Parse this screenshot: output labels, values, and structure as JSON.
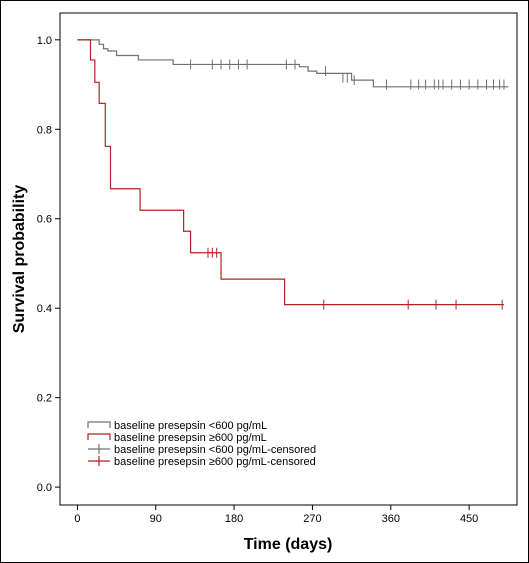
{
  "chart_data": {
    "type": "line",
    "subtype": "kaplan-meier",
    "title": "",
    "xlabel": "Time (days)",
    "ylabel": "Survival probability",
    "xlim": [
      -20,
      505
    ],
    "ylim": [
      -0.04,
      1.06
    ],
    "x_ticks": [
      0,
      90,
      180,
      270,
      360,
      450
    ],
    "y_ticks": [
      0.0,
      0.2,
      0.4,
      0.6,
      0.8,
      1.0
    ],
    "y_tick_labels": [
      "0.0",
      "0.2",
      "0.4",
      "0.6",
      "0.8",
      "1.0"
    ],
    "grid": false,
    "legend_position": "bottom-left",
    "legend": [
      {
        "label": "baseline presepsin <600 pg/mL",
        "kind": "step",
        "color": "#707070"
      },
      {
        "label": "baseline presepsin ≥600 pg/mL",
        "kind": "step",
        "color": "#b22222"
      },
      {
        "label": "baseline presepsin <600 pg/mL-censored",
        "kind": "censor",
        "color": "#707070"
      },
      {
        "label": "baseline presepsin ≥600 pg/mL-censored",
        "kind": "censor",
        "color": "#b22222"
      }
    ],
    "series": [
      {
        "name": "baseline presepsin <600 pg/mL",
        "color": "#707070",
        "steps": [
          [
            0,
            1.0
          ],
          [
            25,
            0.99
          ],
          [
            30,
            0.98
          ],
          [
            35,
            0.975
          ],
          [
            45,
            0.965
          ],
          [
            70,
            0.955
          ],
          [
            110,
            0.945
          ],
          [
            255,
            0.94
          ],
          [
            265,
            0.93
          ],
          [
            275,
            0.925
          ],
          [
            315,
            0.91
          ],
          [
            340,
            0.895
          ],
          [
            495,
            0.895
          ]
        ],
        "censored": [
          [
            130,
            0.945
          ],
          [
            155,
            0.945
          ],
          [
            165,
            0.945
          ],
          [
            175,
            0.945
          ],
          [
            185,
            0.945
          ],
          [
            195,
            0.945
          ],
          [
            240,
            0.945
          ],
          [
            250,
            0.945
          ],
          [
            285,
            0.93
          ],
          [
            305,
            0.915
          ],
          [
            310,
            0.915
          ],
          [
            318,
            0.91
          ],
          [
            355,
            0.9
          ],
          [
            383,
            0.9
          ],
          [
            392,
            0.9
          ],
          [
            400,
            0.9
          ],
          [
            410,
            0.9
          ],
          [
            415,
            0.9
          ],
          [
            420,
            0.9
          ],
          [
            430,
            0.9
          ],
          [
            440,
            0.9
          ],
          [
            450,
            0.9
          ],
          [
            460,
            0.9
          ],
          [
            470,
            0.9
          ],
          [
            478,
            0.9
          ],
          [
            485,
            0.9
          ],
          [
            490,
            0.9
          ]
        ]
      },
      {
        "name": "baseline presepsin ≥600 pg/mL",
        "color": "#b22222",
        "steps": [
          [
            0,
            1.0
          ],
          [
            15,
            0.955
          ],
          [
            20,
            0.905
          ],
          [
            25,
            0.858
          ],
          [
            32,
            0.762
          ],
          [
            38,
            0.667
          ],
          [
            72,
            0.619
          ],
          [
            122,
            0.572
          ],
          [
            130,
            0.524
          ],
          [
            165,
            0.465
          ],
          [
            238,
            0.408
          ],
          [
            490,
            0.408
          ]
        ],
        "censored": [
          [
            150,
            0.524
          ],
          [
            155,
            0.524
          ],
          [
            160,
            0.524
          ],
          [
            283,
            0.408
          ],
          [
            380,
            0.408
          ],
          [
            412,
            0.408
          ],
          [
            435,
            0.408
          ],
          [
            488,
            0.408
          ]
        ]
      }
    ]
  }
}
